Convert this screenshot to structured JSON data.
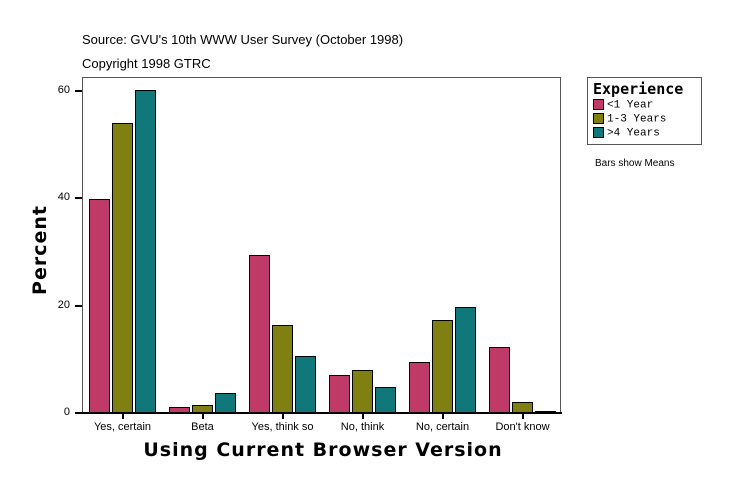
{
  "header": {
    "source": "Source: GVU's 10th WWW User Survey (October 1998)",
    "copyright": "Copyright 1998 GTRC"
  },
  "note": "Bars show Means",
  "chart_data": {
    "type": "bar",
    "title": "",
    "xlabel": "Using Current Browser Version",
    "ylabel": "Percent",
    "ylim": [
      0,
      62
    ],
    "yticks": [
      0,
      20,
      40,
      60
    ],
    "grid": false,
    "legend_position": "right",
    "legend_title": "Experience",
    "categories": [
      "Yes, certain",
      "Beta",
      "Yes, think so",
      "No, think",
      "No, certain",
      "Don't know"
    ],
    "series": [
      {
        "name": "<1 Year",
        "color": "#BF3A66",
        "values": [
          39.9,
          1.1,
          29.4,
          7.1,
          9.5,
          12.3
        ]
      },
      {
        "name": "1-3 Years",
        "color": "#7F7F12",
        "values": [
          54.0,
          1.5,
          16.4,
          8.0,
          17.3,
          2.0
        ]
      },
      {
        "name": ">4 Years",
        "color": "#10787A",
        "values": [
          60.2,
          3.7,
          10.6,
          4.8,
          19.7,
          0.4
        ]
      }
    ]
  }
}
